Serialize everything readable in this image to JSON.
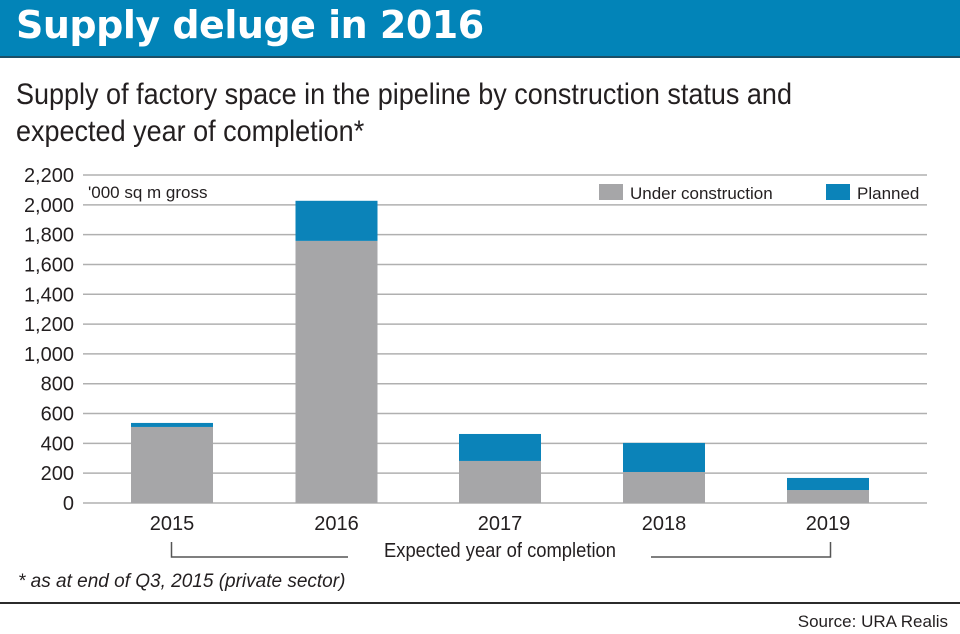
{
  "header": {
    "title": "Supply deluge in 2016"
  },
  "subtitle": "Supply of factory space in the pipeline by construction status and expected year of completion*",
  "footnote": "* as at end of Q3, 2015 (private sector)",
  "source": "Source: URA Realis",
  "colors": {
    "header": "#0284b8",
    "under_construction": "#a6a6a8",
    "planned": "#0b83b9",
    "grid": "#b0b0b0"
  },
  "chart_data": {
    "type": "bar",
    "stacked": true,
    "title": "Supply of factory space in the pipeline by construction status and expected year of completion*",
    "unit_label": "'000 sq m gross",
    "xlabel": "Expected year of completion",
    "ylabel": "'000 sq m gross",
    "categories": [
      "2015",
      "2016",
      "2017",
      "2018",
      "2019"
    ],
    "series": [
      {
        "name": "Under construction",
        "color": "#a6a6a8",
        "values": [
          510,
          1758,
          282,
          208,
          87
        ]
      },
      {
        "name": "Planned",
        "color": "#0b83b9",
        "values": [
          27,
          269,
          181,
          195,
          81
        ]
      }
    ],
    "ylim": [
      0,
      2200
    ],
    "yticks": [
      0,
      200,
      400,
      600,
      800,
      1000,
      1200,
      1400,
      1600,
      1800,
      2000,
      2200
    ],
    "ytick_labels": [
      "0",
      "200",
      "400",
      "600",
      "800",
      "1,000",
      "1,200",
      "1,400",
      "1,600",
      "1,800",
      "2,000",
      "2,200"
    ],
    "grid": true,
    "legend": {
      "placement": "top-right",
      "entries": [
        "Under construction",
        "Planned"
      ]
    }
  }
}
